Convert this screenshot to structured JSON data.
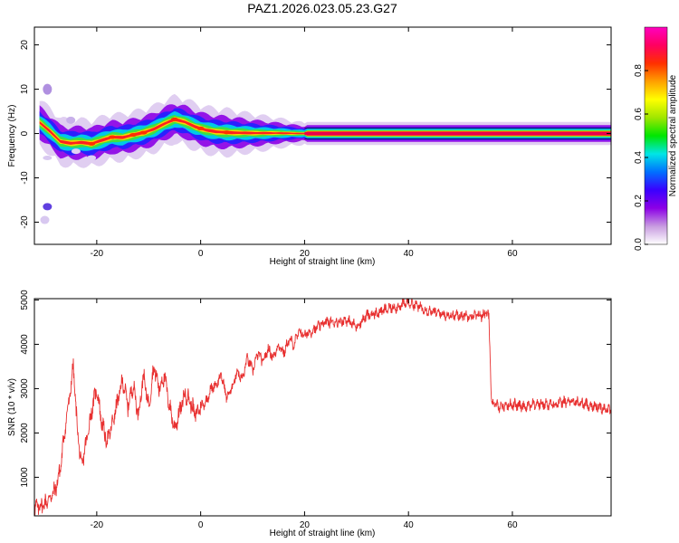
{
  "title": "PAZ1.2026.023.05.23.G27",
  "chart_data": [
    {
      "type": "heatmap",
      "xlabel": "Height of straight line (km)",
      "ylabel": "Frequency (Hz)",
      "xlim": [
        -32,
        79
      ],
      "ylim": [
        -25,
        24
      ],
      "xticks": [
        -20,
        0,
        20,
        40,
        60
      ],
      "yticks": [
        -20,
        -10,
        0,
        10,
        20
      ],
      "frequency_ridge": {
        "x": [
          -31,
          -29,
          -27,
          -25,
          -23,
          -21,
          -19,
          -17,
          -15,
          -13,
          -11,
          -9,
          -7,
          -5,
          -3,
          -1,
          1,
          3,
          6,
          10,
          15,
          20,
          30,
          40,
          50,
          60,
          70,
          79
        ],
        "y": [
          2.5,
          0.5,
          -1.8,
          -2.2,
          -2.0,
          -2.3,
          -1.5,
          -0.8,
          -0.9,
          -0.3,
          0.2,
          1.0,
          2.2,
          3.2,
          2.6,
          1.5,
          0.8,
          0.4,
          0.2,
          0.1,
          0.1,
          0.0,
          0.0,
          0.0,
          0.0,
          0.0,
          0.0,
          0.0
        ]
      },
      "colorbar": {
        "label": "Normalized spectral amplitude",
        "range": [
          0.0,
          1.0
        ],
        "ticks": [
          0.0,
          0.2,
          0.4,
          0.6,
          0.8
        ],
        "tick_labels": [
          "0.0",
          "0.2",
          "0.4",
          "0.6",
          "0.8"
        ],
        "colors": [
          "#ffffff",
          "#c89be0",
          "#8c00e6",
          "#3a00ff",
          "#0070ff",
          "#00e6e6",
          "#00e600",
          "#a0e600",
          "#ffff00",
          "#ffa000",
          "#ff3000",
          "#ff0060",
          "#ff00c0"
        ]
      }
    },
    {
      "type": "line",
      "xlabel": "Height of straight line (km)",
      "ylabel": "SNR (10 * v/v)",
      "xlim": [
        -32,
        79
      ],
      "ylim": [
        130,
        5030
      ],
      "xticks": [
        -20,
        0,
        20,
        40,
        60
      ],
      "yticks": [
        1000,
        2000,
        3000,
        4000,
        5000
      ],
      "line_color": "#e83030",
      "trend": {
        "x": [
          -32,
          -30,
          -28,
          -27,
          -26,
          -25,
          -24.5,
          -24,
          -23,
          -22,
          -21,
          -20,
          -19,
          -18,
          -17,
          -16,
          -15,
          -14,
          -13,
          -12,
          -11,
          -10,
          -9,
          -8,
          -7,
          -6,
          -5,
          -4,
          -3,
          -2,
          -1,
          0,
          1,
          2,
          3,
          4,
          5,
          6,
          7,
          8,
          9,
          10,
          11,
          12,
          13,
          14,
          15,
          16,
          17,
          18,
          19,
          20,
          22,
          24,
          26,
          28,
          30,
          32,
          34,
          36,
          38,
          40,
          42,
          44,
          46,
          48,
          50,
          52,
          54,
          55,
          55.5,
          56,
          58,
          60,
          62,
          64,
          66,
          68,
          70,
          72,
          74,
          76,
          78,
          79
        ],
        "y": [
          300,
          400,
          700,
          1200,
          2200,
          3000,
          3550,
          2500,
          1200,
          1800,
          2500,
          3000,
          2200,
          1800,
          2200,
          2700,
          3200,
          2600,
          3100,
          2400,
          3300,
          2600,
          3500,
          3000,
          3300,
          2600,
          2100,
          2500,
          2900,
          2700,
          2400,
          2600,
          2700,
          3000,
          3100,
          3300,
          2800,
          3000,
          3400,
          3200,
          3700,
          3400,
          3800,
          3600,
          3900,
          3700,
          4000,
          3800,
          4100,
          4000,
          4300,
          4200,
          4350,
          4500,
          4500,
          4550,
          4400,
          4650,
          4700,
          4800,
          4850,
          4950,
          4850,
          4750,
          4700,
          4650,
          4650,
          4650,
          4650,
          4700,
          4600,
          2650,
          2600,
          2650,
          2600,
          2650,
          2650,
          2650,
          2700,
          2700,
          2650,
          2600,
          2550,
          2500
        ]
      },
      "noise_amplitude": 120
    }
  ]
}
